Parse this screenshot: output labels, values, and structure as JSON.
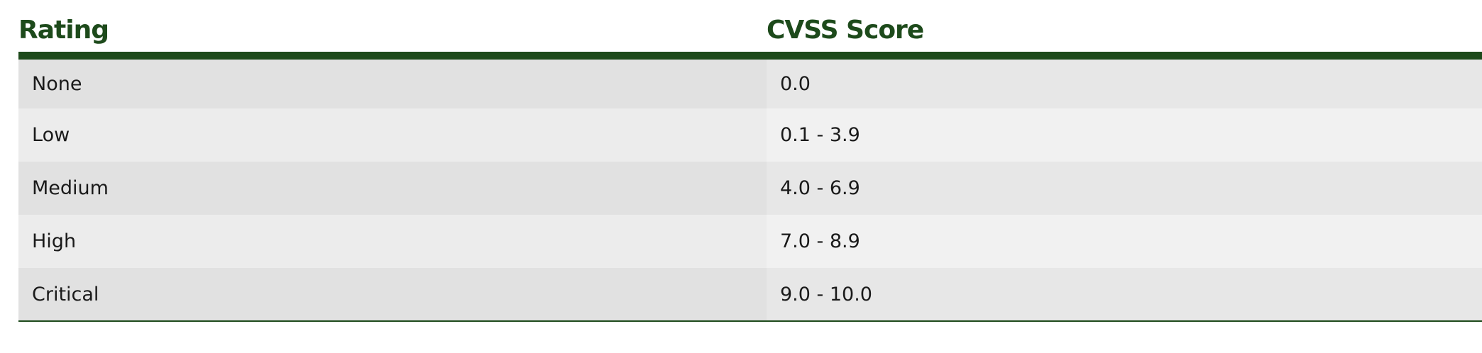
{
  "table": {
    "headers": [
      "Rating",
      "CVSS Score"
    ],
    "rows": [
      {
        "rating": "None",
        "score": "0.0"
      },
      {
        "rating": "Low",
        "score": "0.1 - 3.9"
      },
      {
        "rating": "Medium",
        "score": "4.0 - 6.9"
      },
      {
        "rating": "High",
        "score": "7.0 - 8.9"
      },
      {
        "rating": "Critical",
        "score": "9.0 - 10.0"
      }
    ]
  },
  "colors": {
    "header_text": "#1d4a1b",
    "header_rule": "#1d4a1b",
    "row_odd": "#e1e1e1",
    "row_even": "#ececec"
  }
}
